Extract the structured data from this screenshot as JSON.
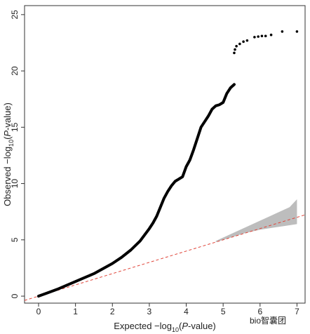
{
  "chart_data": {
    "type": "qq",
    "x_label": [
      "Expected  −log",
      "10",
      "(",
      "P",
      "-value)"
    ],
    "y_label": [
      "Observed  −log",
      "10",
      "(",
      "P",
      "-value)"
    ],
    "xlim": [
      -0.38,
      7.22
    ],
    "ylim": [
      -0.62,
      25.8
    ],
    "xticks": [
      0,
      1,
      2,
      3,
      4,
      5,
      6,
      7
    ],
    "yticks": [
      0,
      5,
      10,
      15,
      20,
      25
    ],
    "reference_line": {
      "slope": 1,
      "intercept": 0,
      "color": "#e0453a"
    },
    "band": {
      "color": "#bdbdbd",
      "x": [
        4.8,
        5.2,
        5.6,
        6.0,
        6.4,
        6.8,
        7.0
      ],
      "upper": [
        4.9,
        5.5,
        6.1,
        6.7,
        7.3,
        7.9,
        8.6
      ],
      "lower": [
        4.8,
        5.2,
        5.6,
        5.9,
        6.1,
        6.3,
        6.4
      ]
    },
    "series": [
      {
        "mode": "line",
        "color": "#000000",
        "x": [
          0,
          0.25,
          0.5,
          0.75,
          1,
          1.25,
          1.5,
          1.75,
          2,
          2.25,
          2.5,
          2.75,
          3,
          3.1,
          3.2,
          3.3,
          3.4,
          3.5,
          3.6,
          3.7,
          3.8,
          3.9,
          4,
          4.1,
          4.2,
          4.3,
          4.4,
          4.5,
          4.6,
          4.7,
          4.8,
          4.9,
          5,
          5.1,
          5.2,
          5.3
        ],
        "y": [
          0,
          0.3,
          0.6,
          0.95,
          1.3,
          1.65,
          2.0,
          2.45,
          2.9,
          3.45,
          4.1,
          4.9,
          6.0,
          6.5,
          7.1,
          7.9,
          8.7,
          9.3,
          9.8,
          10.2,
          10.4,
          10.6,
          11.5,
          12.1,
          13.0,
          14.0,
          15.0,
          15.5,
          16.0,
          16.6,
          16.9,
          17.0,
          17.2,
          18.0,
          18.5,
          18.8
        ]
      },
      {
        "mode": "points",
        "color": "#000000",
        "x": [
          5.3,
          5.32,
          5.36,
          5.45,
          5.55,
          5.65,
          5.85,
          5.95,
          6.05,
          6.15,
          6.3,
          6.6,
          7.0
        ],
        "y": [
          21.6,
          21.9,
          22.2,
          22.4,
          22.6,
          22.7,
          23.0,
          23.05,
          23.1,
          23.1,
          23.2,
          23.5,
          23.5
        ]
      }
    ],
    "watermark": "bio智囊团"
  }
}
